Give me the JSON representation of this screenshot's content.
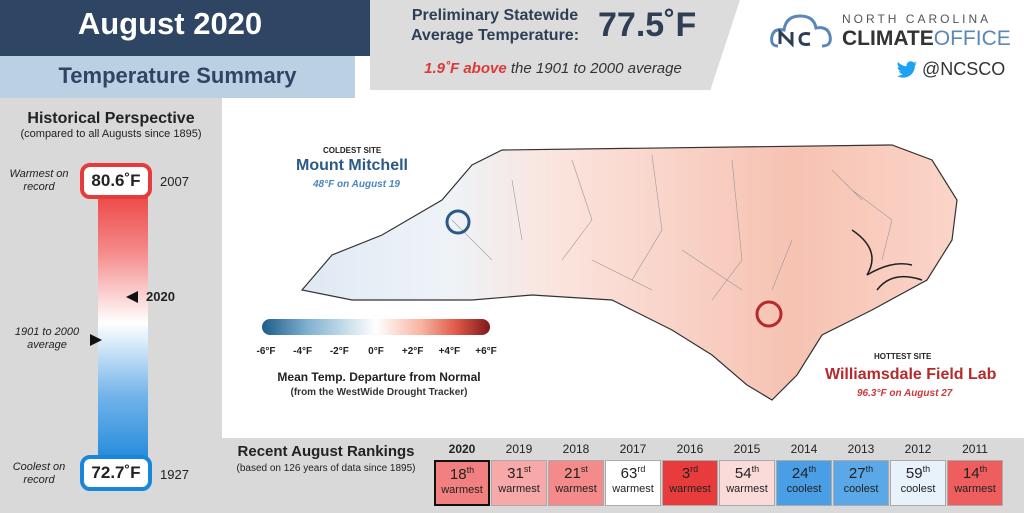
{
  "header": {
    "month": "August 2020",
    "subtitle": "Temperature Summary",
    "stat_label_line1": "Preliminary Statewide",
    "stat_label_line2": "Average Temperature:",
    "stat_value": "77.5˚F",
    "stat_note_above": "1.9˚F above",
    "stat_note_rest": "the 1901 to 2000 average"
  },
  "logo": {
    "line1": "NORTH CAROLINA",
    "line2_a": "CLIMATE",
    "line2_b": "OFFICE",
    "twitter": "@NCSCO"
  },
  "historical": {
    "title": "Historical Perspective",
    "subtitle": "(compared to all Augusts since 1895)",
    "warmest_label": "Warmest on record",
    "warmest_value": "80.6˚F",
    "warmest_year": "2007",
    "current_year": "2020",
    "average_label": "1901 to 2000 average",
    "coolest_label": "Coolest on record",
    "coolest_value": "72.7˚F",
    "coolest_year": "1927",
    "marker_current_fraction": 0.41,
    "marker_average_fraction": 0.56
  },
  "map": {
    "coldest": {
      "type": "COLDEST SITE",
      "name": "Mount Mitchell",
      "detail": "48°F on August 19"
    },
    "hottest": {
      "type": "HOTTEST SITE",
      "name": "Williamsdale Field Lab",
      "detail": "96.3°F on August 27"
    },
    "scale_ticks": [
      "-6°F",
      "-4°F",
      "-2°F",
      "0°F",
      "+2°F",
      "+4°F",
      "+6°F"
    ],
    "scale_title": "Mean Temp. Departure from Normal",
    "scale_subtitle": "(from the WestWide Drought Tracker)"
  },
  "rankings": {
    "title": "Recent August Rankings",
    "subtitle": "(based on 126 years of data since 1895)",
    "items": [
      {
        "year": "2020",
        "rank": "18",
        "suffix": "th",
        "label": "warmest",
        "color": "#f28080"
      },
      {
        "year": "2019",
        "rank": "31",
        "suffix": "st",
        "label": "warmest",
        "color": "#f7a8a8"
      },
      {
        "year": "2018",
        "rank": "21",
        "suffix": "st",
        "label": "warmest",
        "color": "#f58a8a"
      },
      {
        "year": "2017",
        "rank": "63",
        "suffix": "rd",
        "label": "warmest",
        "color": "#ffffff"
      },
      {
        "year": "2016",
        "rank": "3",
        "suffix": "rd",
        "label": "warmest",
        "color": "#e83c3c"
      },
      {
        "year": "2015",
        "rank": "54",
        "suffix": "th",
        "label": "warmest",
        "color": "#fbdada"
      },
      {
        "year": "2014",
        "rank": "24",
        "suffix": "th",
        "label": "coolest",
        "color": "#4a9ee6"
      },
      {
        "year": "2013",
        "rank": "27",
        "suffix": "th",
        "label": "coolest",
        "color": "#5aa8e8"
      },
      {
        "year": "2012",
        "rank": "59",
        "suffix": "th",
        "label": "coolest",
        "color": "#e8f2fb"
      },
      {
        "year": "2011",
        "rank": "14",
        "suffix": "th",
        "label": "warmest",
        "color": "#ee5e5e"
      }
    ]
  }
}
